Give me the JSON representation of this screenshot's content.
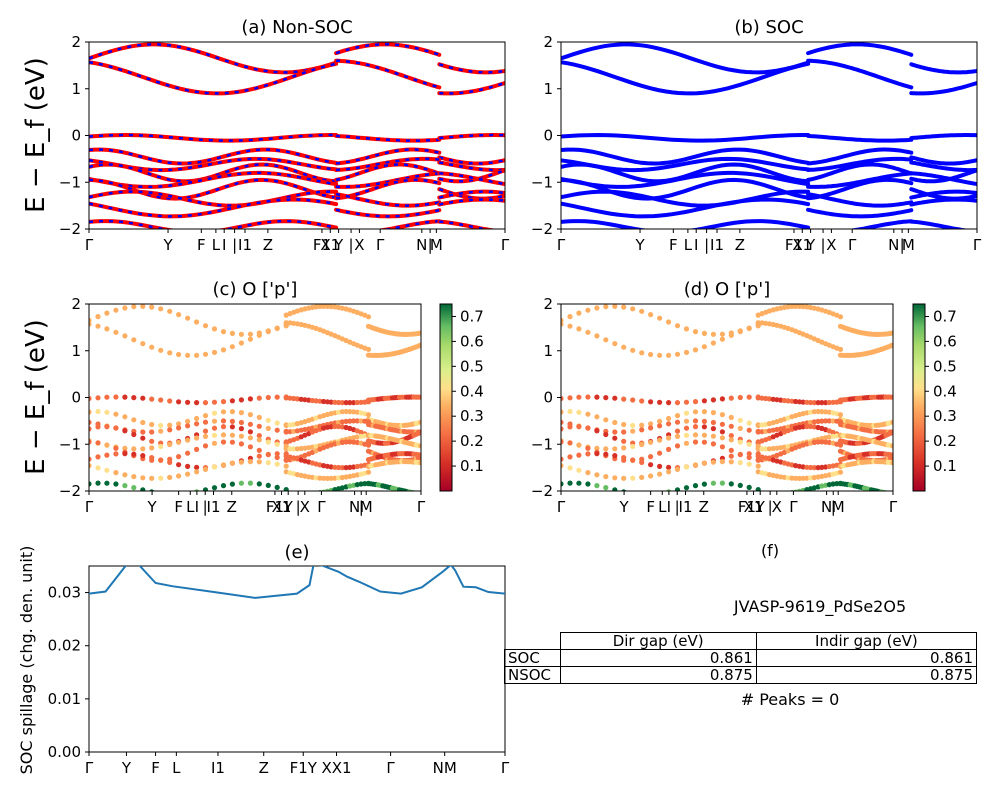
{
  "colors": {
    "nonsoc_band_red": "#ff0000",
    "nonsoc_band_blue": "#0000ff",
    "soc_band": "#0000ff",
    "spillage_line": "#1f77b4",
    "colormap": "RdYlGn"
  },
  "band_panels": {
    "a": {
      "title": "(a) Non-SOC"
    },
    "b": {
      "title": "(b) SOC"
    },
    "c": {
      "title": "(c)  O ['p']"
    },
    "d": {
      "title": "(d) O ['p']"
    }
  },
  "band_ylabel": "E − E_f (eV)",
  "band_ylim": [
    -2,
    2
  ],
  "band_yticks": [
    "2",
    "1",
    "0",
    "−1",
    "−2"
  ],
  "kpath_ticks_ab": [
    "Γ",
    "Y",
    "F",
    "L",
    "I",
    "|",
    "I1",
    "Z",
    "F1",
    "X1",
    "Y",
    "|",
    "X",
    "Γ",
    "N",
    "|",
    "M",
    "Γ"
  ],
  "kpath_ticks_cd": [
    "Γ",
    "Y",
    "F",
    "L",
    "I",
    "|",
    "I1",
    "Z",
    "F1",
    "X1",
    "Y",
    "|",
    "X",
    "Γ",
    "N",
    "|",
    "M",
    "Γ"
  ],
  "colorbar": {
    "ticks": [
      "0.7",
      "0.6",
      "0.5",
      "0.4",
      "0.3",
      "0.2",
      "0.1"
    ],
    "range": [
      0.0,
      0.75
    ]
  },
  "chart_data": [
    {
      "type": "line",
      "panel": "(e)",
      "title": "(e)",
      "ylabel": "SOC spillage (chg. den. unit)",
      "ylim": [
        0,
        0.035
      ],
      "yticks": [
        "0.00",
        "0.01",
        "0.02",
        "0.03"
      ],
      "xticks": [
        "Γ",
        "Y",
        "F",
        "L",
        "I1",
        "Z",
        "F1Y",
        "XX1",
        "Γ",
        "NM",
        "Γ"
      ],
      "series": [
        {
          "k": [
            0,
            0.04,
            0.09,
            0.12,
            0.16,
            0.2,
            0.3,
            0.4,
            0.5,
            0.53,
            0.54,
            0.56,
            0.6,
            0.62,
            0.65,
            0.7,
            0.75,
            0.8,
            0.85,
            0.87,
            0.88,
            0.9,
            0.93,
            0.96,
            1.0
          ],
          "values": [
            0.0298,
            0.0302,
            0.0352,
            0.0352,
            0.0318,
            0.0312,
            0.0301,
            0.029,
            0.0298,
            0.0314,
            0.0353,
            0.0351,
            0.0339,
            0.033,
            0.032,
            0.0302,
            0.0298,
            0.031,
            0.0339,
            0.0352,
            0.0342,
            0.0311,
            0.031,
            0.0301,
            0.0298
          ]
        }
      ]
    }
  ],
  "panel_f": {
    "title": "(f)",
    "heading": "JVASP-9619_PdSe2O5",
    "col_headers": [
      "Dir gap (eV)",
      "Indir gap (eV)"
    ],
    "rows": [
      {
        "label": "SOC",
        "dir": "0.861",
        "indir": "0.861"
      },
      {
        "label": "NSOC",
        "dir": "0.875",
        "indir": "0.875"
      }
    ],
    "peaks": "# Peaks = 0"
  }
}
